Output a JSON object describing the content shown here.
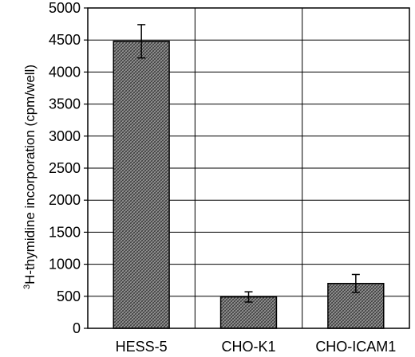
{
  "chart_data": {
    "type": "bar",
    "title": "",
    "xlabel": "",
    "ylabel_sup": "3",
    "ylabel": "H-thymidine incorporation (cpm/well)",
    "categories": [
      "HESS-5",
      "CHO-K1",
      "CHO-ICAM1"
    ],
    "values": [
      4480,
      490,
      700
    ],
    "errors": [
      260,
      80,
      140
    ],
    "ylim": [
      0,
      5000
    ],
    "yticks": [
      "0",
      "500",
      "1000",
      "1500",
      "2000",
      "2500",
      "3000",
      "3500",
      "4000",
      "4500",
      "5000"
    ],
    "grid": true,
    "bar_pattern": "crosshatch",
    "bar_color": "#8a8a8a",
    "axis_color": "#000000"
  }
}
